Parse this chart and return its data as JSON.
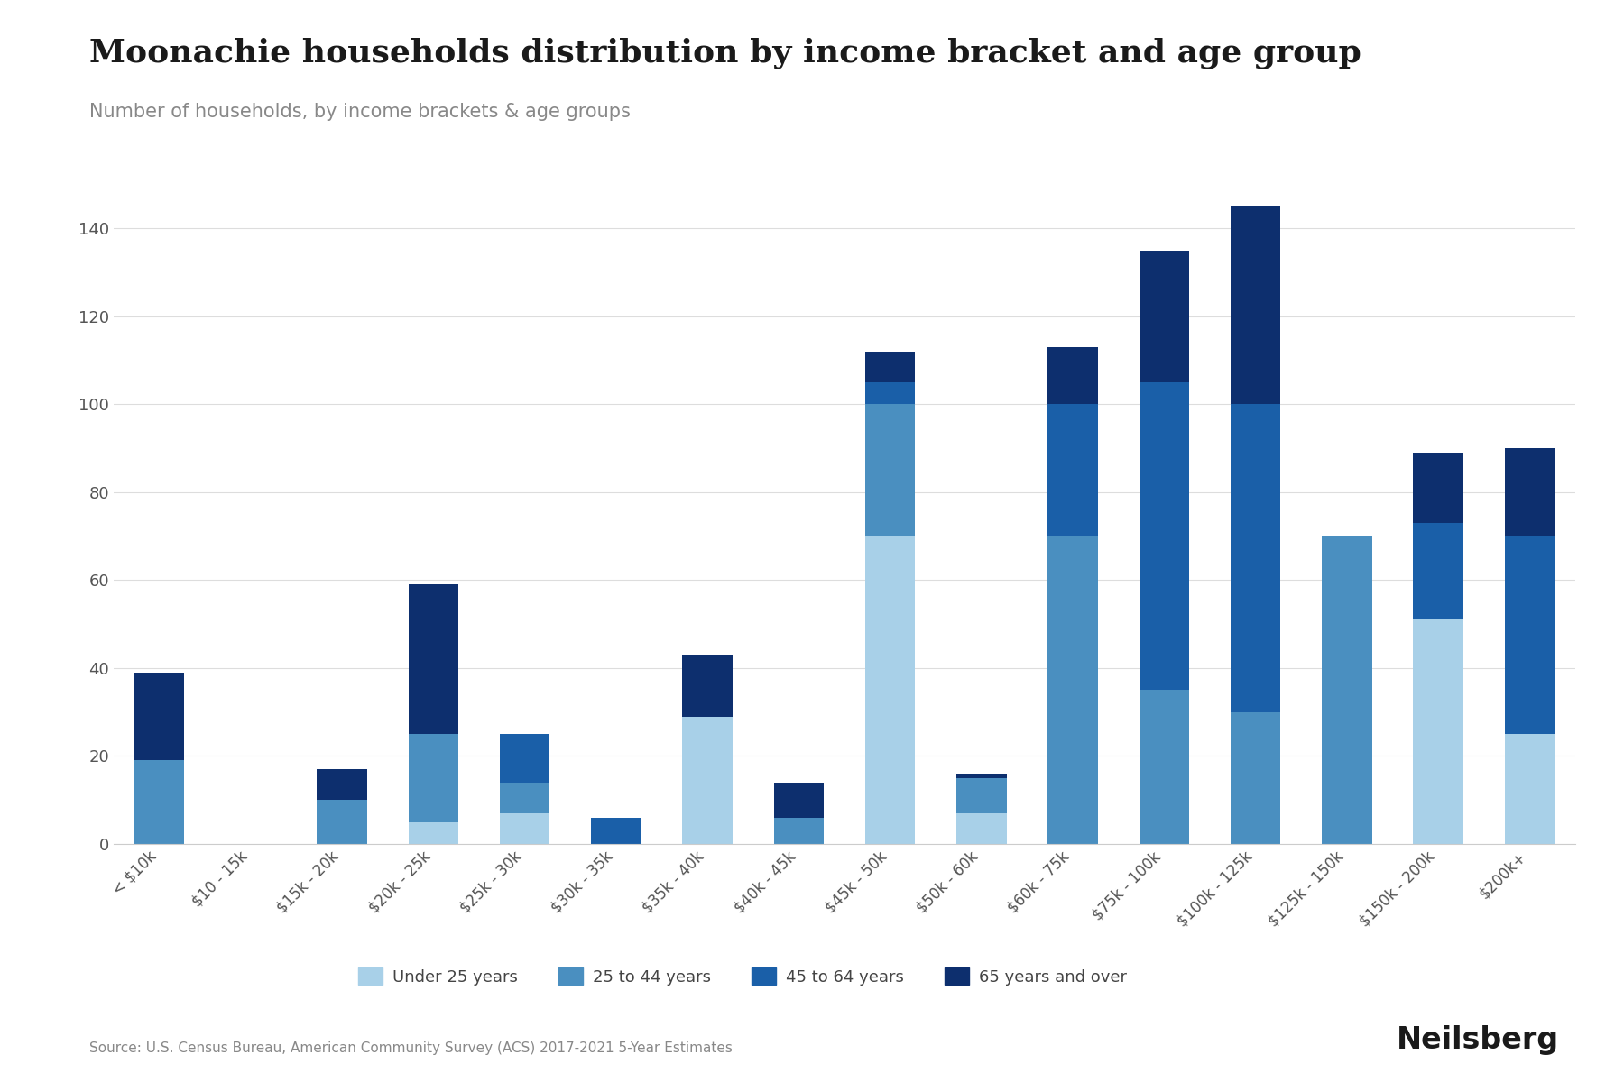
{
  "title": "Moonachie households distribution by income bracket and age group",
  "subtitle": "Number of households, by income brackets & age groups",
  "source": "Source: U.S. Census Bureau, American Community Survey (ACS) 2017-2021 5-Year Estimates",
  "categories": [
    "< $10k",
    "$10 - 15k",
    "$15k - 20k",
    "$20k - 25k",
    "$25k - 30k",
    "$30k - 35k",
    "$35k - 40k",
    "$40k - 45k",
    "$45k - 50k",
    "$50k - 60k",
    "$60k - 75k",
    "$75k - 100k",
    "$100k - 125k",
    "$125k - 150k",
    "$150k - 200k",
    "$200k+"
  ],
  "age_groups": [
    "Under 25 years",
    "25 to 44 years",
    "45 to 64 years",
    "65 years and over"
  ],
  "colors": [
    "#a8d0e8",
    "#4a8fc0",
    "#1a5fa8",
    "#0d2f6e"
  ],
  "under25": [
    0,
    0,
    0,
    5,
    7,
    0,
    29,
    0,
    70,
    7,
    0,
    0,
    0,
    0,
    51,
    25
  ],
  "age25to44": [
    19,
    0,
    10,
    20,
    7,
    0,
    0,
    6,
    30,
    8,
    70,
    35,
    30,
    70,
    0,
    0
  ],
  "age45to64": [
    0,
    0,
    0,
    0,
    11,
    6,
    0,
    0,
    5,
    0,
    30,
    70,
    70,
    0,
    22,
    45
  ],
  "age65plus": [
    20,
    0,
    7,
    34,
    0,
    0,
    14,
    8,
    7,
    1,
    13,
    30,
    45,
    0,
    16,
    20
  ],
  "ylim": [
    0,
    155
  ],
  "yticks": [
    0,
    20,
    40,
    60,
    80,
    100,
    120,
    140
  ],
  "background_color": "#ffffff",
  "grid_color": "#dddddd",
  "logo_text": "Neilsberg"
}
